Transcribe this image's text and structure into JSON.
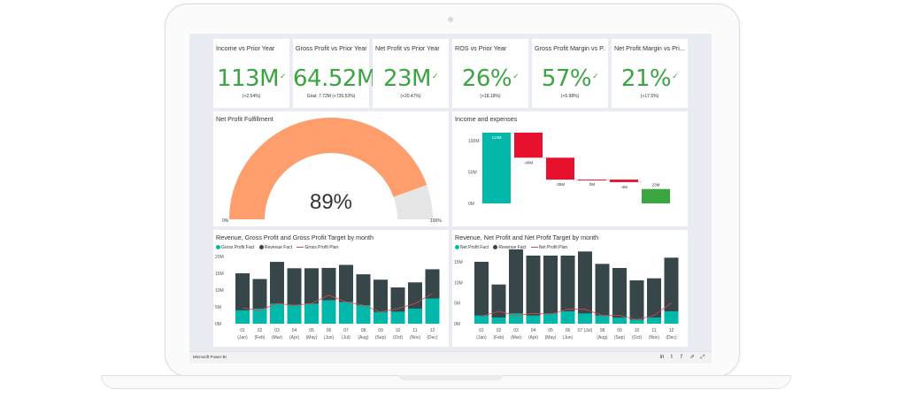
{
  "app": {
    "brand": "Microsoft Power BI"
  },
  "colors": {
    "teal": "#01b8aa",
    "dark": "#374649",
    "red": "#fd625e",
    "green": "#3aa541",
    "orange": "#fd9e6c",
    "waterfall_red": "#e8112d",
    "waterfall_green": "#3aa541"
  },
  "kpis": [
    {
      "title": "Income vs Prior Year",
      "value": "113M",
      "sub": "(+2.54%)"
    },
    {
      "title": "Gross Profit vs Prior Year",
      "value": "64.52M",
      "sub": "Goal: 7.72M (+735.53%)"
    },
    {
      "title": "Net Profit vs Prior Year",
      "value": "23M",
      "sub": "(+20.47%)"
    },
    {
      "title": "ROS vs Prior Year",
      "value": "26%",
      "sub": "(+18.18%)"
    },
    {
      "title": "Gross Profit Margin vs P...",
      "value": "57%",
      "sub": "(+5.98%)"
    },
    {
      "title": "Net Profit Margin vs Pri...",
      "value": "21%",
      "sub": "(+17.5%)"
    }
  ],
  "gauge": {
    "title": "Net Profit Fulfillment",
    "value_label": "89%",
    "min_label": "0%",
    "max_label": "100%"
  },
  "chart_data": [
    {
      "type": "gauge",
      "title": "Net Profit Fulfillment",
      "value": 0.89,
      "min": 0,
      "max": 1,
      "labels": {
        "center": "89%",
        "min": "0%",
        "max": "100%"
      }
    },
    {
      "type": "bar",
      "subtype": "waterfall",
      "title": "Income and expenses",
      "ylim": [
        0,
        120
      ],
      "yticks": [
        "0M",
        "50M",
        "100M"
      ],
      "yticks_values": [
        0,
        50,
        100
      ],
      "steps": [
        {
          "label": "113M",
          "start": 0,
          "end": 113,
          "kind": "total"
        },
        {
          "label": "-40M",
          "start": 113,
          "end": 73,
          "kind": "decrease"
        },
        {
          "label": "-35M",
          "start": 73,
          "end": 38,
          "kind": "decrease"
        },
        {
          "label": "0M",
          "start": 38,
          "end": 38,
          "kind": "decrease"
        },
        {
          "label": "-4M",
          "start": 38,
          "end": 34,
          "kind": "decrease"
        },
        {
          "label": "23M",
          "start": 0,
          "end": 23,
          "kind": "total"
        }
      ]
    },
    {
      "type": "bar",
      "title": "Revenue, Gross Profit and Gross Profit Target by month",
      "legend": [
        "Gross Profit Fact",
        "Revenue Fact",
        "Gross Profit Plan"
      ],
      "categories": [
        "01 (Jan)",
        "02 (Feb)",
        "03 (Mar)",
        "04 (Apr)",
        "05 (May)",
        "06 (Jun)",
        "07 (Jul)",
        "08 (Aug)",
        "09 (Sep)",
        "10 (Oct)",
        "11 (Nov)",
        "12 (Dec)"
      ],
      "cat_top": [
        "01",
        "02",
        "03",
        "04",
        "05",
        "06",
        "07",
        "08",
        "09",
        "10",
        "11",
        "12"
      ],
      "cat_bottom": [
        "(Jan)",
        "(Feb)",
        "(Mar)",
        "(Apr)",
        "(May)",
        "(Jun)",
        "(Jul)",
        "(Aug)",
        "(Sep)",
        "(Oct)",
        "(Nov)",
        "(Dec)"
      ],
      "yticks": [
        "0M",
        "5M",
        "10M",
        "15M",
        "20M"
      ],
      "yticks_values": [
        0,
        5,
        10,
        15,
        20
      ],
      "ylim": [
        0,
        20
      ],
      "series": [
        {
          "name": "Revenue Fact",
          "values": [
            15,
            13.3,
            18.4,
            16.5,
            16.5,
            16.6,
            17.5,
            14.7,
            13.1,
            10.8,
            12.3,
            16.2
          ]
        },
        {
          "name": "Gross Profit Fact",
          "values": [
            4,
            4.5,
            6,
            5.5,
            6,
            7,
            6.5,
            5.5,
            3.5,
            3.6,
            4.5,
            7.5
          ]
        },
        {
          "name": "Gross Profit Plan",
          "values": [
            4.7,
            4,
            6,
            5.5,
            6,
            8.5,
            6.5,
            5.5,
            3.5,
            4.5,
            6,
            9
          ]
        }
      ]
    },
    {
      "type": "bar",
      "title": "Revenue, Net Profit and Net Profit Target by month",
      "legend": [
        "Net Profit Fact",
        "Revenue Fact",
        "Net Profit Plan"
      ],
      "categories": [
        "01 (Jan)",
        "02 (Feb)",
        "03 (Mar)",
        "04 (Apr)",
        "05 (May)",
        "06 (Jun)",
        "07 (Jul)",
        "08 (Aug)",
        "09 (Sep)",
        "10 (Oct)",
        "11 (Nov)",
        "12 (Dec)"
      ],
      "cat_top": [
        "01",
        "02",
        "03",
        "04",
        "05",
        "06",
        "07 (Jul)",
        "08",
        "09",
        "10",
        "11",
        "12"
      ],
      "cat_bottom": [
        "(Jan)",
        "(Feb)",
        "(Mar)",
        "(Apr)",
        "(May)",
        "(Jun)",
        "",
        "(Aug)",
        "(Sep)",
        "(Oct)",
        "(Nov)",
        "(Dec)"
      ],
      "yticks": [
        "0M",
        "5M",
        "10M",
        "15M"
      ],
      "yticks_values": [
        0,
        5,
        10,
        15
      ],
      "ylim": [
        0,
        18
      ],
      "series": [
        {
          "name": "Revenue Fact",
          "values": [
            15,
            9.5,
            18,
            16.5,
            16.5,
            16.5,
            17.5,
            14.5,
            13.5,
            10.5,
            11,
            16
          ]
        },
        {
          "name": "Net Profit Fact",
          "values": [
            2,
            1.5,
            2.5,
            2,
            2.5,
            3,
            2.5,
            2,
            1.5,
            1,
            1.5,
            3
          ]
        },
        {
          "name": "Net Profit Plan",
          "values": [
            1.8,
            3,
            2,
            2.5,
            2.3,
            3.5,
            3.5,
            2,
            2,
            1,
            2,
            5
          ]
        }
      ]
    }
  ]
}
